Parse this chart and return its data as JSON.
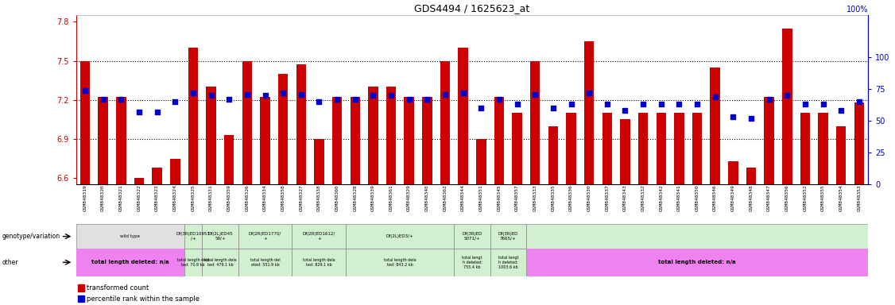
{
  "title": "GDS4494 / 1625623_at",
  "samples": [
    "GSM848319",
    "GSM848320",
    "GSM848321",
    "GSM848322",
    "GSM848323",
    "GSM848324",
    "GSM848325",
    "GSM848331",
    "GSM848359",
    "GSM848326",
    "GSM848334",
    "GSM848358",
    "GSM848327",
    "GSM848338",
    "GSM848360",
    "GSM848328",
    "GSM848339",
    "GSM848361",
    "GSM848329",
    "GSM848340",
    "GSM848362",
    "GSM848344",
    "GSM848351",
    "GSM848345",
    "GSM848357",
    "GSM848333",
    "GSM848335",
    "GSM848336",
    "GSM848330",
    "GSM848337",
    "GSM848343",
    "GSM848332",
    "GSM848342",
    "GSM848341",
    "GSM848350",
    "GSM848346",
    "GSM848349",
    "GSM848348",
    "GSM848347",
    "GSM848356",
    "GSM848352",
    "GSM848355",
    "GSM848354",
    "GSM848353"
  ],
  "bar_values": [
    7.5,
    7.22,
    7.22,
    6.6,
    6.68,
    6.75,
    7.6,
    7.3,
    6.93,
    7.5,
    7.22,
    7.4,
    7.47,
    6.9,
    7.22,
    7.22,
    7.3,
    7.3,
    7.22,
    7.22,
    7.5,
    7.6,
    6.9,
    7.22,
    7.1,
    7.5,
    7.0,
    7.1,
    7.65,
    7.1,
    7.05,
    7.1,
    7.1,
    7.1,
    7.1,
    7.45,
    6.73,
    6.68,
    7.22,
    7.75,
    7.1,
    7.1,
    7.0,
    7.18
  ],
  "percentile_values": [
    74,
    67,
    67,
    57,
    57,
    65,
    72,
    70,
    67,
    71,
    70,
    72,
    71,
    65,
    67,
    67,
    70,
    70,
    67,
    67,
    71,
    72,
    60,
    67,
    63,
    71,
    60,
    63,
    72,
    63,
    58,
    63,
    63,
    63,
    63,
    69,
    53,
    52,
    67,
    70,
    63,
    63,
    58,
    65
  ],
  "ylim_left": [
    6.55,
    7.85
  ],
  "yticks_left": [
    6.6,
    6.9,
    7.2,
    7.5,
    7.8
  ],
  "ylim_right": [
    0,
    133
  ],
  "yticks_right": [
    0,
    25,
    50,
    75,
    100
  ],
  "bar_color": "#cc0000",
  "dot_color": "#0000cc",
  "bg_color": "#ffffff",
  "title_color": "#000000",
  "left_axis_color": "#cc0000",
  "right_axis_color": "#0000cc",
  "genotype_groups": [
    {
      "start": 0,
      "end": 6,
      "color": "#e0e0e0",
      "geno_text": "wild type",
      "other_text": "total length deleted: n/a",
      "other_na": true
    },
    {
      "start": 6,
      "end": 7,
      "color": "#d0f0d0",
      "geno_text": "Df(3R)ED10953\n/+",
      "other_text": "total length dele\nted: 70.9 kb",
      "other_na": false
    },
    {
      "start": 7,
      "end": 9,
      "color": "#d0f0d0",
      "geno_text": "Df(2L)ED45\n59/+",
      "other_text": "total length dele\nted: 479.1 kb",
      "other_na": false
    },
    {
      "start": 9,
      "end": 12,
      "color": "#d0f0d0",
      "geno_text": "Df(2R)ED1770/\n+",
      "other_text": "total length del\neted: 551.9 kb",
      "other_na": false
    },
    {
      "start": 12,
      "end": 15,
      "color": "#d0f0d0",
      "geno_text": "Df(2R)ED1612/\n+",
      "other_text": "total length dele\nted: 829.1 kb",
      "other_na": false
    },
    {
      "start": 15,
      "end": 21,
      "color": "#d0f0d0",
      "geno_text": "Df(2L)ED3/+",
      "other_text": "total length dele\nted: 843.2 kb",
      "other_na": false
    },
    {
      "start": 21,
      "end": 23,
      "color": "#d0f0d0",
      "geno_text": "Df(3R)ED\n5071/+",
      "other_text": "total lengt\nh deleted:\n755.4 kb",
      "other_na": false
    },
    {
      "start": 23,
      "end": 25,
      "color": "#d0f0d0",
      "geno_text": "Df(3R)ED\n7665/+",
      "other_text": "total lengt\nh deleted:\n1003.6 kb",
      "other_na": false
    },
    {
      "start": 25,
      "end": 44,
      "color": "#d0f0d0",
      "geno_text": "",
      "other_text": "total length deleted: n/a",
      "other_na": true
    }
  ]
}
